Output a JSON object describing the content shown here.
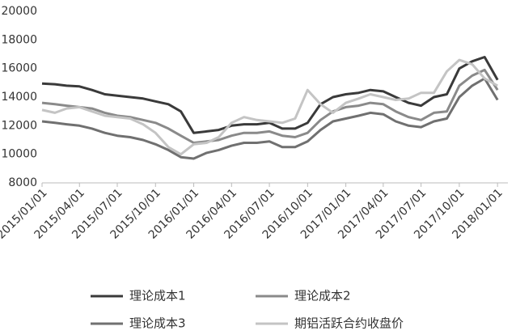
{
  "chart_data": {
    "type": "line",
    "x": [
      "2015/01/01",
      "2015/02/01",
      "2015/03/01",
      "2015/04/01",
      "2015/05/01",
      "2015/06/01",
      "2015/07/01",
      "2015/08/01",
      "2015/09/01",
      "2015/10/01",
      "2015/11/01",
      "2015/12/01",
      "2016/01/01",
      "2016/02/01",
      "2016/03/01",
      "2016/04/01",
      "2016/05/01",
      "2016/06/01",
      "2016/07/01",
      "2016/08/01",
      "2016/09/01",
      "2016/10/01",
      "2016/11/01",
      "2016/12/01",
      "2017/01/01",
      "2017/02/01",
      "2017/03/01",
      "2017/04/01",
      "2017/05/01",
      "2017/06/01",
      "2017/07/01",
      "2017/08/01",
      "2017/09/01",
      "2017/10/01",
      "2017/11/01",
      "2017/12/01",
      "2018/01/01"
    ],
    "series": [
      {
        "name": "理论成本1",
        "color": "#3a3a3a",
        "values": [
          14950,
          14900,
          14800,
          14750,
          14500,
          14200,
          14100,
          14000,
          13900,
          13700,
          13500,
          13000,
          11500,
          11600,
          11700,
          12000,
          12100,
          12100,
          12200,
          11800,
          11800,
          12200,
          13500,
          14000,
          14200,
          14300,
          14500,
          14400,
          14000,
          13600,
          13400,
          14000,
          14200,
          16000,
          16500,
          16800,
          15200
        ]
      },
      {
        "name": "理论成本2",
        "color": "#8a8a8a",
        "values": [
          13600,
          13500,
          13400,
          13300,
          13200,
          12900,
          12700,
          12600,
          12400,
          12200,
          11800,
          11300,
          10800,
          10900,
          11000,
          11300,
          11500,
          11500,
          11600,
          11300,
          11200,
          11500,
          12400,
          13000,
          13300,
          13400,
          13600,
          13500,
          13000,
          12600,
          12400,
          12900,
          13000,
          14800,
          15500,
          15900,
          14500
        ]
      },
      {
        "name": "理论成本3",
        "color": "#707070",
        "values": [
          12300,
          12200,
          12100,
          12000,
          11800,
          11500,
          11300,
          11200,
          11000,
          10700,
          10300,
          9800,
          9700,
          10100,
          10300,
          10600,
          10800,
          10800,
          10900,
          10500,
          10500,
          10900,
          11700,
          12300,
          12500,
          12700,
          12900,
          12800,
          12300,
          12000,
          11900,
          12300,
          12500,
          14000,
          14800,
          15300,
          13800
        ]
      },
      {
        "name": "期铝活跃合约收盘价",
        "color": "#c4c4c4",
        "values": [
          13100,
          12900,
          13200,
          13300,
          13000,
          12700,
          12600,
          12500,
          12100,
          11500,
          10500,
          10000,
          10700,
          10800,
          11200,
          12200,
          12600,
          12400,
          12300,
          12200,
          12500,
          14500,
          13500,
          12900,
          13600,
          13900,
          14200,
          14000,
          13800,
          13900,
          14300,
          14300,
          15800,
          16600,
          16300,
          15300,
          14800
        ]
      }
    ],
    "xlim": [
      "2015/01/01",
      "2018/01/26"
    ],
    "xticks": [
      "2015/01/01",
      "2015/04/01",
      "2015/07/01",
      "2015/10/01",
      "2016/01/01",
      "2016/04/01",
      "2016/07/01",
      "2016/10/01",
      "2017/01/01",
      "2017/04/01",
      "2017/07/01",
      "2017/10/01",
      "2018/01/01"
    ],
    "ylim": [
      8000,
      20000
    ],
    "yticks": [
      8000,
      10000,
      12000,
      14000,
      16000,
      18000,
      20000
    ]
  }
}
